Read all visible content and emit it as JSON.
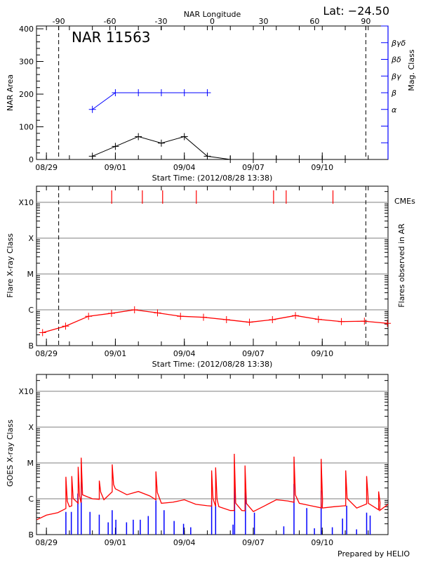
{
  "header": {
    "lat_label": "Lat: −24.50",
    "region_label": "NAR 11563",
    "footer": "Prepared by HELIO"
  },
  "colors": {
    "area": "#000000",
    "mag_class": "#0000ff",
    "flares": "#ff0000",
    "cme": "#ff0000",
    "goes_long": "#ff0000",
    "goes_short": "#0000ff",
    "grid": "#999999"
  },
  "chart_data": [
    {
      "type": "line",
      "title": "NAR 11563",
      "xlabel": "Start Time: (2012/08/28 13:38)",
      "x2label": "NAR Longitude",
      "ylabel": "NAR Area",
      "y2label": "Mag. Class",
      "xlim": [
        "2012-08-28 13:38",
        "2012-09-12 20:40"
      ],
      "x_ticks": [
        "08/29",
        "09/01",
        "09/04",
        "09/07",
        "09/10"
      ],
      "x2lim": [
        -103,
        103
      ],
      "x2_ticks": [
        -90,
        -60,
        -30,
        0,
        30,
        60,
        90
      ],
      "ylim": [
        0,
        400
      ],
      "y_ticks": [
        0,
        100,
        200,
        300,
        400
      ],
      "y2_categories": [
        "",
        "",
        "",
        "α",
        "β",
        "βγ",
        "βδ",
        "βγδ",
        ""
      ],
      "limb_longitudes": [
        -90,
        90
      ],
      "series": [
        {
          "name": "area",
          "x": [
            "2012-08-31 00:00",
            "2012-09-01 00:00",
            "2012-09-02 00:00",
            "2012-09-03 00:00",
            "2012-09-04 00:00",
            "2012-09-05 00:00",
            "2012-09-06 00:00",
            "2012-09-07 00:00",
            "2012-09-08 00:00",
            "2012-09-09 00:00",
            "2012-09-10 00:00",
            "2012-09-11 00:00"
          ],
          "values": [
            10,
            40,
            70,
            50,
            70,
            10,
            0,
            0,
            0,
            0,
            0,
            0
          ]
        },
        {
          "name": "mag_class",
          "x": [
            "2012-08-31 00:00",
            "2012-09-01 00:00",
            "2012-09-02 00:00",
            "2012-09-03 00:00",
            "2012-09-04 00:00",
            "2012-09-05 00:00"
          ],
          "values": [
            "α",
            "β",
            "β",
            "β",
            "β",
            "β"
          ]
        }
      ]
    },
    {
      "type": "line",
      "xlabel": "Start Time: (2012/08/28 13:38)",
      "ylabel": "Flare X-ray Class",
      "y2label": "Flares observed in AR",
      "cme_label": "CMEs",
      "xlim": [
        "2012-08-28 13:38",
        "2012-09-12 20:40"
      ],
      "x_ticks": [
        "08/29",
        "09/01",
        "09/04",
        "09/07",
        "09/10"
      ],
      "yscale": "log",
      "ylim": [
        1e-07,
        0.0028
      ],
      "y_ticks": [
        {
          "label": "B",
          "value": 1e-07
        },
        {
          "label": "C",
          "value": 1e-06
        },
        {
          "label": "M",
          "value": 1e-05
        },
        {
          "label": "X",
          "value": 0.0001
        },
        {
          "label": "X10",
          "value": 0.001
        }
      ],
      "grid": true,
      "limb_longitudes": [
        -90,
        90
      ],
      "series": [
        {
          "name": "flares",
          "x": [
            "2012-08-28 20:00",
            "2012-08-29 20:00",
            "2012-08-30 20:00",
            "2012-08-31 20:00",
            "2012-09-01 20:00",
            "2012-09-02 20:00",
            "2012-09-03 20:00",
            "2012-09-04 20:00",
            "2012-09-05 20:00",
            "2012-09-06 20:00",
            "2012-09-07 20:00",
            "2012-09-08 20:00",
            "2012-09-09 20:00",
            "2012-09-10 20:00",
            "2012-09-11 20:00",
            "2012-09-12 20:00"
          ],
          "values": [
            2.3e-07,
            3.5e-07,
            6.6e-07,
            8e-07,
            1e-06,
            8.2e-07,
            6.6e-07,
            6.2e-07,
            5.3e-07,
            4.5e-07,
            5.3e-07,
            6.9e-07,
            5.4e-07,
            4.7e-07,
            4.8e-07,
            4.2e-07
          ]
        }
      ],
      "cmes": [
        "2012-08-31 20:10",
        "2012-09-02 04:10",
        "2012-09-03 01:20",
        "2012-09-04 12:30",
        "2012-09-07 21:10",
        "2012-09-08 10:20",
        "2012-09-10 11:10"
      ]
    },
    {
      "type": "line",
      "ylabel": "GOES X-ray Class",
      "xlim": [
        "2012-08-28 13:38",
        "2012-09-12 20:40"
      ],
      "x_ticks": [
        "08/29",
        "09/01",
        "09/04",
        "09/07",
        "09/10"
      ],
      "yscale": "log",
      "ylim": [
        1e-07,
        0.0028
      ],
      "y_ticks": [
        {
          "label": "B",
          "value": 1e-07
        },
        {
          "label": "C",
          "value": 1e-06
        },
        {
          "label": "M",
          "value": 1e-05
        },
        {
          "label": "X",
          "value": 0.0001
        },
        {
          "label": "X10",
          "value": 0.001
        }
      ],
      "grid": true,
      "series": [
        {
          "name": "goes_long_background",
          "x": [
            "2012-08-28 14:00",
            "2012-08-29 00:00",
            "2012-08-29 12:00",
            "2012-08-30 00:00",
            "2012-08-30 12:00",
            "2012-08-31 00:00",
            "2012-08-31 12:00",
            "2012-09-01 00:00",
            "2012-09-01 12:00",
            "2012-09-02 00:00",
            "2012-09-02 12:00",
            "2012-09-03 00:00",
            "2012-09-03 12:00",
            "2012-09-04 00:00",
            "2012-09-04 12:00",
            "2012-09-05 00:00",
            "2012-09-05 12:00",
            "2012-09-06 00:00",
            "2012-09-06 12:00",
            "2012-09-07 00:00",
            "2012-09-07 12:00",
            "2012-09-08 00:00",
            "2012-09-08 12:00",
            "2012-09-09 00:00",
            "2012-09-09 12:00",
            "2012-09-10 00:00",
            "2012-09-10 12:00",
            "2012-09-11 00:00",
            "2012-09-11 12:00",
            "2012-09-12 00:00",
            "2012-09-12 12:00",
            "2012-09-12 20:40"
          ],
          "values": [
            2.6e-07,
            3.5e-07,
            4.1e-07,
            6e-07,
            8e-07,
            1e-06,
            9.4e-07,
            1.9e-06,
            1.3e-06,
            1.6e-06,
            1.2e-06,
            7.5e-07,
            8e-07,
            9.4e-07,
            7e-07,
            6.4e-07,
            6e-07,
            4.7e-07,
            4.7e-07,
            4.4e-07,
            6.4e-07,
            9.4e-07,
            8.7e-07,
            7.5e-07,
            6.4e-07,
            5.5e-07,
            6e-07,
            6.4e-07,
            5.5e-07,
            7.5e-07,
            4.7e-07,
            7e-07
          ]
        },
        {
          "name": "goes_long_peaks",
          "x": [
            "2012-08-29 20:20",
            "2012-08-30 02:30",
            "2012-08-30 09:10",
            "2012-08-30 12:20",
            "2012-08-31 07:10",
            "2012-08-31 20:40",
            "2012-09-02 18:20",
            "2012-09-05 04:30",
            "2012-09-05 08:40",
            "2012-09-06 04:10",
            "2012-09-06 15:20",
            "2012-09-08 18:30",
            "2012-09-09 22:50",
            "2012-09-11 00:30",
            "2012-09-11 22:20",
            "2012-09-12 10:50"
          ],
          "values": [
            4.1e-06,
            4.3e-06,
            7.8e-06,
            1.4e-05,
            3.2e-06,
            9.1e-06,
            5.8e-06,
            6.2e-06,
            7.5e-06,
            1.8e-05,
            8.5e-06,
            1.5e-05,
            1.3e-05,
            6.2e-06,
            4.3e-06,
            1.6e-06
          ]
        },
        {
          "name": "goes_short_peaks",
          "x": [
            "2012-08-29 20:20",
            "2012-08-30 02:00",
            "2012-08-30 08:50",
            "2012-08-30 12:20",
            "2012-08-30 21:30",
            "2012-08-31 07:10",
            "2012-08-31 16:30",
            "2012-08-31 20:40",
            "2012-09-01 00:30",
            "2012-09-01 11:40",
            "2012-09-01 18:40",
            "2012-09-02 02:00",
            "2012-09-02 10:20",
            "2012-09-02 18:20",
            "2012-09-03 02:50",
            "2012-09-03 13:20",
            "2012-09-03 23:10",
            "2012-09-04 06:40",
            "2012-09-05 04:30",
            "2012-09-05 08:40",
            "2012-09-06 02:50",
            "2012-09-06 04:30",
            "2012-09-06 15:50",
            "2012-09-07 01:10",
            "2012-09-08 07:50",
            "2012-09-08 18:30",
            "2012-09-09 07:50",
            "2012-09-09 15:50",
            "2012-09-09 22:50",
            "2012-09-10 10:30",
            "2012-09-10 21:10",
            "2012-09-11 01:30",
            "2012-09-11 11:50",
            "2012-09-11 22:20",
            "2012-09-12 02:00"
          ],
          "values": [
            4.3e-07,
            4.3e-07,
            1.4e-06,
            3e-06,
            4.3e-07,
            3.6e-07,
            2.2e-07,
            4.8e-07,
            2.6e-07,
            2.2e-07,
            2.6e-07,
            2.6e-07,
            3.3e-07,
            9e-07,
            4.8e-07,
            2.4e-07,
            2e-07,
            1.6e-07,
            9e-07,
            7e-07,
            1.9e-07,
            3.8e-06,
            1.5e-06,
            4.1e-07,
            1.7e-07,
            2.6e-06,
            5.5e-07,
            1.5e-07,
            1.7e-06,
            1.6e-07,
            2.8e-07,
            6.4e-07,
            1.4e-07,
            4.1e-07,
            3.4e-07
          ]
        }
      ]
    }
  ]
}
